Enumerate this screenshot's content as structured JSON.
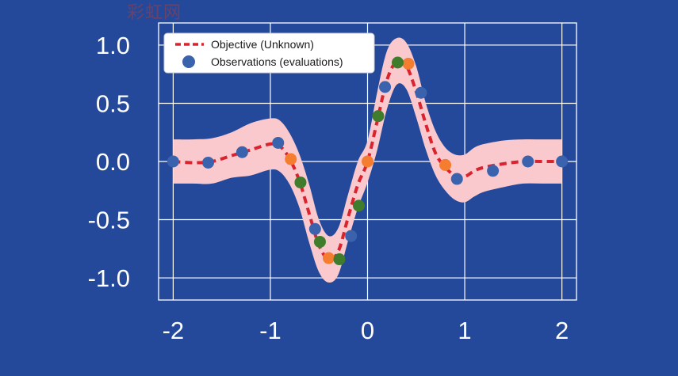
{
  "watermark": "彩虹网",
  "colors": {
    "background": "#24499b",
    "grid": "#ffffff",
    "band": "#f9c9cd",
    "objective": "#d9232e",
    "obs_blue": "#3b63ad",
    "obs_orange": "#f47d30",
    "obs_green": "#3f7d2c",
    "text": "#ffffff"
  },
  "chart_data": {
    "type": "line",
    "title": "",
    "xlabel": "",
    "ylabel": "",
    "xlim": [
      -2.15,
      2.15
    ],
    "ylim": [
      -1.19,
      1.19
    ],
    "xticks": [
      -2,
      -1,
      0,
      1,
      2
    ],
    "xtick_labels": [
      "-2",
      "-1",
      "0",
      "1",
      "2"
    ],
    "yticks": [
      1.0,
      0.5,
      0.0,
      -0.5,
      -1.0
    ],
    "ytick_labels": [
      "1.0",
      "0.5",
      "0.0",
      "-0.5",
      "-1.0"
    ],
    "grid": true,
    "legend": {
      "placement": "top-left",
      "entries": [
        {
          "label": "Objective (Unknown)",
          "marker": "dashed-line",
          "color": "#d9232e"
        },
        {
          "label": "Observations (evaluations)",
          "marker": "dot",
          "color": "#3b63ad"
        }
      ]
    },
    "series": [
      {
        "name": "Objective (Unknown)",
        "style": "dashed",
        "x": [
          -2.0,
          -1.8,
          -1.6,
          -1.4,
          -1.2,
          -1.0,
          -0.9,
          -0.8,
          -0.7,
          -0.6,
          -0.5,
          -0.4,
          -0.3,
          -0.2,
          -0.1,
          0.0,
          0.1,
          0.2,
          0.3,
          0.4,
          0.5,
          0.6,
          0.7,
          0.8,
          0.9,
          1.0,
          1.1,
          1.2,
          1.4,
          1.6,
          1.8,
          2.0
        ],
        "y": [
          0.0,
          -0.01,
          0.0,
          0.05,
          0.1,
          0.15,
          0.13,
          0.02,
          -0.17,
          -0.45,
          -0.72,
          -0.84,
          -0.77,
          -0.48,
          -0.2,
          0.0,
          0.35,
          0.7,
          0.86,
          0.82,
          0.6,
          0.32,
          0.07,
          -0.05,
          -0.12,
          -0.13,
          -0.08,
          -0.05,
          -0.02,
          0.0,
          0.0,
          0.0
        ]
      },
      {
        "name": "uncertainty-band",
        "style": "band",
        "x": [
          -2.0,
          -1.8,
          -1.6,
          -1.4,
          -1.2,
          -1.0,
          -0.9,
          -0.8,
          -0.7,
          -0.6,
          -0.5,
          -0.4,
          -0.3,
          -0.2,
          -0.1,
          0.0,
          0.1,
          0.2,
          0.3,
          0.4,
          0.5,
          0.6,
          0.7,
          0.8,
          0.9,
          1.0,
          1.1,
          1.2,
          1.4,
          1.6,
          1.8,
          2.0
        ],
        "upper": [
          0.19,
          0.19,
          0.2,
          0.25,
          0.33,
          0.37,
          0.35,
          0.24,
          0.06,
          -0.2,
          -0.5,
          -0.64,
          -0.57,
          -0.28,
          0.0,
          0.18,
          0.6,
          0.95,
          1.06,
          1.02,
          0.82,
          0.5,
          0.26,
          0.12,
          0.06,
          0.06,
          0.12,
          0.15,
          0.18,
          0.19,
          0.19,
          0.19
        ],
        "lower": [
          -0.19,
          -0.19,
          -0.19,
          -0.14,
          -0.12,
          -0.07,
          -0.09,
          -0.2,
          -0.4,
          -0.7,
          -0.95,
          -1.04,
          -0.97,
          -0.68,
          -0.4,
          -0.18,
          0.1,
          0.45,
          0.66,
          0.62,
          0.38,
          0.1,
          -0.12,
          -0.25,
          -0.33,
          -0.35,
          -0.3,
          -0.26,
          -0.22,
          -0.19,
          -0.19,
          -0.19
        ]
      },
      {
        "name": "observations-blue",
        "style": "points",
        "color": "#3b63ad",
        "x": [
          -2.0,
          -1.64,
          -1.29,
          -0.92,
          -0.54,
          -0.17,
          0.18,
          0.55,
          0.92,
          1.29,
          1.65,
          2.0
        ],
        "y": [
          0.0,
          -0.01,
          0.08,
          0.16,
          -0.58,
          -0.64,
          0.64,
          0.59,
          -0.15,
          -0.08,
          0.0,
          0.0
        ]
      },
      {
        "name": "observations-orange",
        "style": "points",
        "color": "#f47d30",
        "x": [
          -0.79,
          -0.4,
          0.0,
          0.42,
          0.8
        ],
        "y": [
          0.02,
          -0.83,
          0.0,
          0.84,
          -0.03
        ]
      },
      {
        "name": "observations-green",
        "style": "points",
        "color": "#3f7d2c",
        "x": [
          -0.69,
          -0.49,
          -0.29,
          -0.09,
          0.11,
          0.31
        ],
        "y": [
          -0.18,
          -0.69,
          -0.84,
          -0.38,
          0.39,
          0.85
        ]
      }
    ]
  }
}
